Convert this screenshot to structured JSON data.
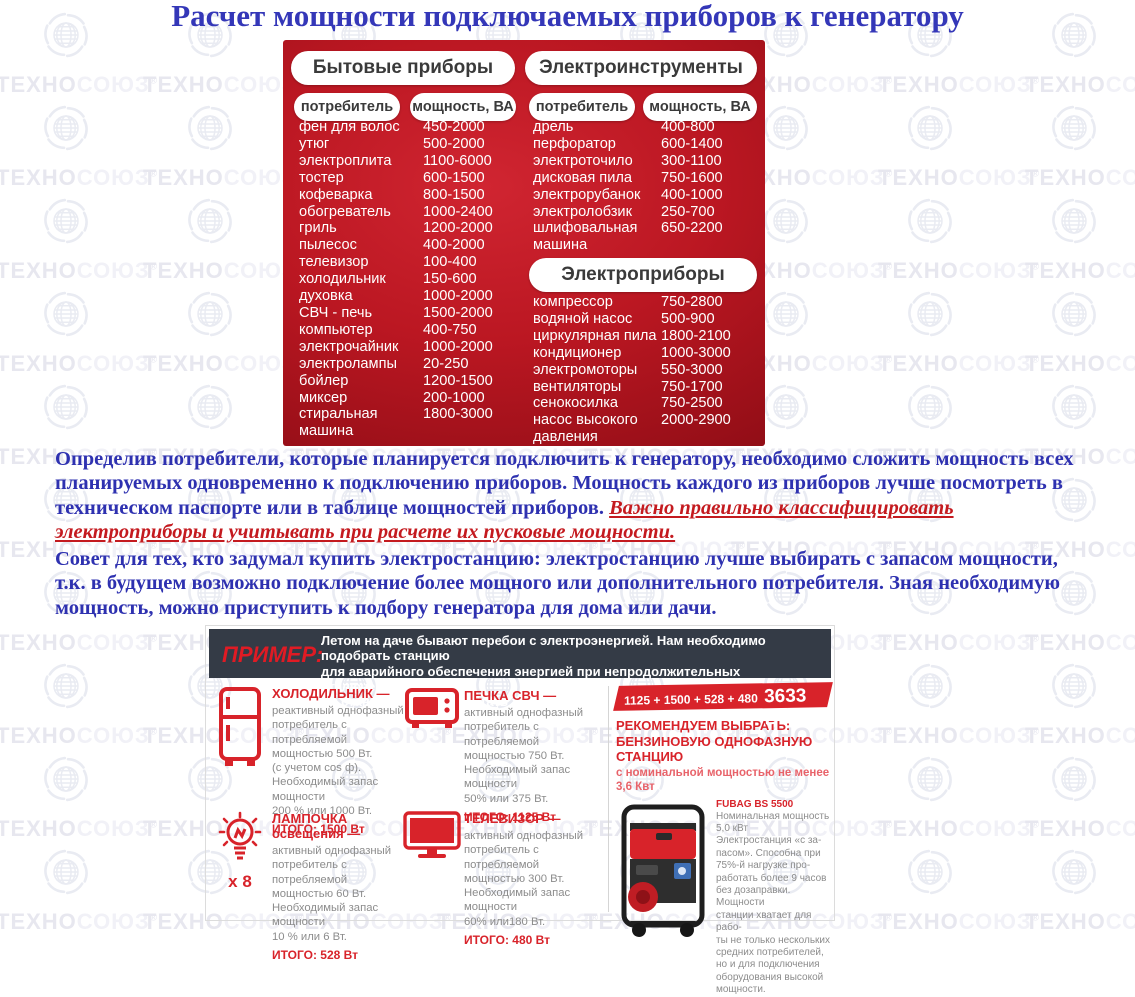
{
  "page": {
    "title": "Расчет мощности подключаемых приборов к генератору"
  },
  "watermark": {
    "bold_part": "ТЕХНО",
    "light_part": "СОЮЗ",
    "reg_mark": "®"
  },
  "colors": {
    "accent_red": "#d8232a",
    "table_red": "#b5121e",
    "title_blue": "#3437b8",
    "warning_red": "#c41a1f",
    "header_bar_dark": "#343b46",
    "desc_gray": "#8c8c8c"
  },
  "power_table": {
    "household": {
      "title": "Бытовые приборы",
      "consumer_header": "потребитель",
      "power_header": "мощность, ВА",
      "rows": [
        {
          "name": "фен для волос",
          "power": "450-2000"
        },
        {
          "name": "утюг",
          "power": "500-2000"
        },
        {
          "name": "электроплита",
          "power": "1100-6000"
        },
        {
          "name": "тостер",
          "power": "600-1500"
        },
        {
          "name": "кофеварка",
          "power": "800-1500"
        },
        {
          "name": "обогреватель",
          "power": "1000-2400"
        },
        {
          "name": "гриль",
          "power": "1200-2000"
        },
        {
          "name": "пылесос",
          "power": "400-2000"
        },
        {
          "name": "телевизор",
          "power": "100-400"
        },
        {
          "name": "холодильник",
          "power": "150-600"
        },
        {
          "name": "духовка",
          "power": "1000-2000"
        },
        {
          "name": "СВЧ - печь",
          "power": "1500-2000"
        },
        {
          "name": "компьютер",
          "power": "400-750"
        },
        {
          "name": "электрочайник",
          "power": "1000-2000"
        },
        {
          "name": "электролампы",
          "power": "20-250"
        },
        {
          "name": "бойлер",
          "power": "1200-1500"
        },
        {
          "name": "миксер",
          "power": "200-1000"
        },
        {
          "name": "стиральная машина",
          "power": "1800-3000"
        }
      ]
    },
    "tools": {
      "title": "Электроинструменты",
      "consumer_header": "потребитель",
      "power_header": "мощность, ВА",
      "rows": [
        {
          "name": "дрель",
          "power": "400-800"
        },
        {
          "name": "перфоратор",
          "power": "600-1400"
        },
        {
          "name": "электроточило",
          "power": "300-1100"
        },
        {
          "name": "дисковая пила",
          "power": "750-1600"
        },
        {
          "name": "электрорубанок",
          "power": "400-1000"
        },
        {
          "name": "электролобзик",
          "power": "250-700"
        },
        {
          "name": "шлифовальная машина",
          "power": "650-2200"
        }
      ]
    },
    "appliances": {
      "title": "Электроприборы",
      "rows": [
        {
          "name": "компрессор",
          "power": "750-2800"
        },
        {
          "name": "водяной насос",
          "power": "500-900"
        },
        {
          "name": "циркулярная пила",
          "power": "1800-2100"
        },
        {
          "name": "кондиционер",
          "power": "1000-3000"
        },
        {
          "name": "электромоторы",
          "power": "550-3000"
        },
        {
          "name": "вентиляторы",
          "power": "750-1700"
        },
        {
          "name": "сенокосилка",
          "power": "750-2500"
        },
        {
          "name": "насос высокого давления",
          "power": "2000-2900"
        }
      ]
    }
  },
  "paragraphs": {
    "p1_main": "Определив потребители, которые планируется подключить к генератору, необходимо сложить мощность всех планируемых одновременно к подключению приборов. Мощность каждого из приборов лучше посмотреть в техническом паспорте или в таблице мощностей приборов. ",
    "p1_warning": "Важно правильно классифицировать электроприборы и учитывать при расчете их пусковые мощности.",
    "p2": "Совет для тех, кто задумал купить электростанцию: электростанцию лучше выбирать с запасом мощности, т.к. в будущем возможно подключение более мощного или дополнительного потребителя. Зная необходимую мощность, можно приступить к подбору генератора для дома или дачи."
  },
  "example": {
    "label": "ПРИМЕР:",
    "intro": "Летом на даче бывают перебои с электроэнергией. Нам необходимо подобрать станцию\nдля аварийного обеспечения энергией при непродолжительных отключениях.\nОт станции должен работать холодильник, печка СВЧ, телевизор и лампы освещения.",
    "items": [
      {
        "icon": "fridge-icon",
        "title": "ХОЛОДИЛЬНИК —",
        "desc": "реактивный однофазный\nпотребитель с потребляемой\nмощностью 500 Вт.\n(с учетом cos ф).\nНеобходимый запас мощности\n200 % или 1000 Вт.",
        "total": "ИТОГО: 1500 Вт"
      },
      {
        "icon": "microwave-icon",
        "title": "ПЕЧКА СВЧ —",
        "desc": "активный однофазный\nпотребитель с потребляемой\nмощностью 750 Вт.\nНеобходимый запас мощности\n50% или 375 Вт.",
        "total": "ИТОГО: 1125 Вт"
      },
      {
        "icon": "lightbulb-icon",
        "title": "ЛАМПОЧКА освещения —",
        "count": "х 8",
        "desc": "активный однофазный\nпотребитель с потребляемой\nмощностью 60 Вт.\nНеобходимый запас мощности\n10 % или 6 Вт.",
        "total": "ИТОГО: 528 Вт"
      },
      {
        "icon": "tv-icon",
        "title": "ТЕЛЕВИЗОР —",
        "desc": "активный однофазный\nпотребитель с потребляемой\nмощностью 300 Вт.\nНеобходимый запас мощности\n60% или180 Вт.",
        "total": "ИТОГО: 480 Вт"
      }
    ],
    "sum_formula": "1125 + 1500 + 528 + 480 =",
    "sum_total": "3633 Вт",
    "recommendation": {
      "line1": "РЕКОМЕНДУЕМ ВЫБРАТЬ:",
      "line2": "БЕНЗИНОВУЮ ОДНОФАЗНУЮ СТАНЦИЮ",
      "line3": "с номинальной мощностью не менее 3,6 Квт",
      "product_name": "FUBAG BS 5500",
      "product_desc": "Номинальная мощность\n5,0 кВт\nЭлектростанция «с за-\nпасом». Способна при\n75%-й нагрузке про-\nработать более 9 часов\nбез дозаправки. Мощности\nстанции хватает для рабо-\nты не только нескольких\nсредних потребителей,\nно и для подключения\nоборудования высокой\nмощности."
    }
  }
}
